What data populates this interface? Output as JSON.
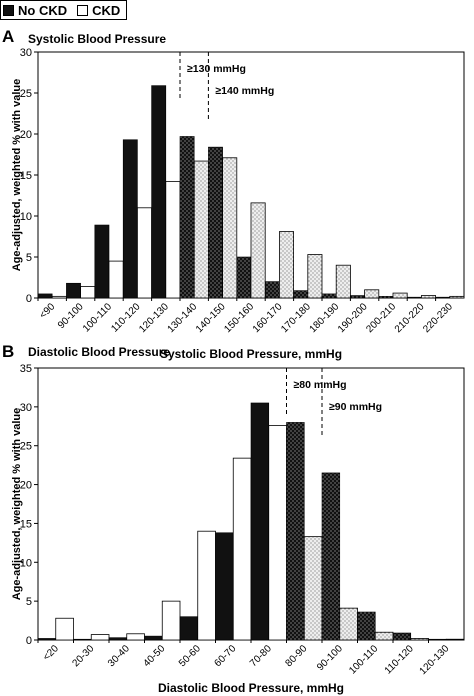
{
  "legend": {
    "items": [
      {
        "label": "No CKD",
        "color": "#111111"
      },
      {
        "label": "CKD",
        "color": "#ffffff"
      }
    ]
  },
  "colors": {
    "no_ckd": "#111111",
    "ckd": "#ffffff",
    "stipple_bg": "#eeeeee",
    "stipple_dot": "#6a6a6a",
    "dark_dot": "#bbbbbb"
  },
  "shared": {
    "ylabel": "Age-adjusted, weighted % with value"
  },
  "chart_data": [
    {
      "panel_letter": "A",
      "type": "bar",
      "title": "Systolic Blood Pressure",
      "xlabel": "Systolic Blood Pressure, mmHg",
      "ylabel": "Age-adjusted, weighted % with value",
      "ylim": [
        0,
        30
      ],
      "yticks": [
        0,
        5,
        10,
        15,
        20,
        25,
        30
      ],
      "categories": [
        "<90",
        "90-100",
        "100-110",
        "110-120",
        "120-130",
        "130-140",
        "140-150",
        "150-160",
        "160-170",
        "170-180",
        "180-190",
        "190-200",
        "200-210",
        "210-220",
        "220-230"
      ],
      "series": [
        {
          "name": "No CKD",
          "values": [
            0.5,
            1.8,
            8.9,
            19.3,
            25.9,
            19.7,
            18.4,
            5.0,
            2.0,
            0.9,
            0.5,
            0.3,
            0.2,
            0.1,
            0.1
          ]
        },
        {
          "name": "CKD",
          "values": [
            0.2,
            1.4,
            4.5,
            11.0,
            14.2,
            16.7,
            17.1,
            11.6,
            8.1,
            5.3,
            4.0,
            1.0,
            0.6,
            0.3,
            0.2
          ]
        }
      ],
      "stippled_from_category": "130-140",
      "thresholds": [
        {
          "label": "≥130 mmHg",
          "at_category_boundary": "120-130|130-140"
        },
        {
          "label": "≥140 mmHg",
          "at_category_boundary": "130-140|140-150"
        }
      ]
    },
    {
      "panel_letter": "B",
      "type": "bar",
      "title": "Diastolic Blood Pressure",
      "xlabel": "Diastolic Blood Pressure, mmHg",
      "ylabel": "Age-adjusted, weighted % with value",
      "ylim": [
        0,
        35
      ],
      "yticks": [
        0,
        5,
        10,
        15,
        20,
        25,
        30,
        35
      ],
      "categories": [
        "<20",
        "20-30",
        "30-40",
        "40-50",
        "50-60",
        "60-70",
        "70-80",
        "80-90",
        "90-100",
        "100-110",
        "110-120",
        "120-130"
      ],
      "series": [
        {
          "name": "No CKD",
          "values": [
            0.2,
            0.1,
            0.3,
            0.5,
            3.0,
            13.8,
            30.5,
            28.0,
            21.5,
            3.6,
            0.9,
            0.1
          ]
        },
        {
          "name": "CKD",
          "values": [
            2.8,
            0.7,
            0.8,
            5.0,
            14.0,
            23.4,
            27.6,
            13.3,
            4.1,
            1.0,
            0.2,
            0.1
          ]
        }
      ],
      "stippled_from_category": "80-90",
      "thresholds": [
        {
          "label": "≥80 mmHg",
          "at_category_boundary": "70-80|80-90"
        },
        {
          "label": "≥90 mmHg",
          "at_category_boundary": "80-90|90-100"
        }
      ]
    }
  ]
}
